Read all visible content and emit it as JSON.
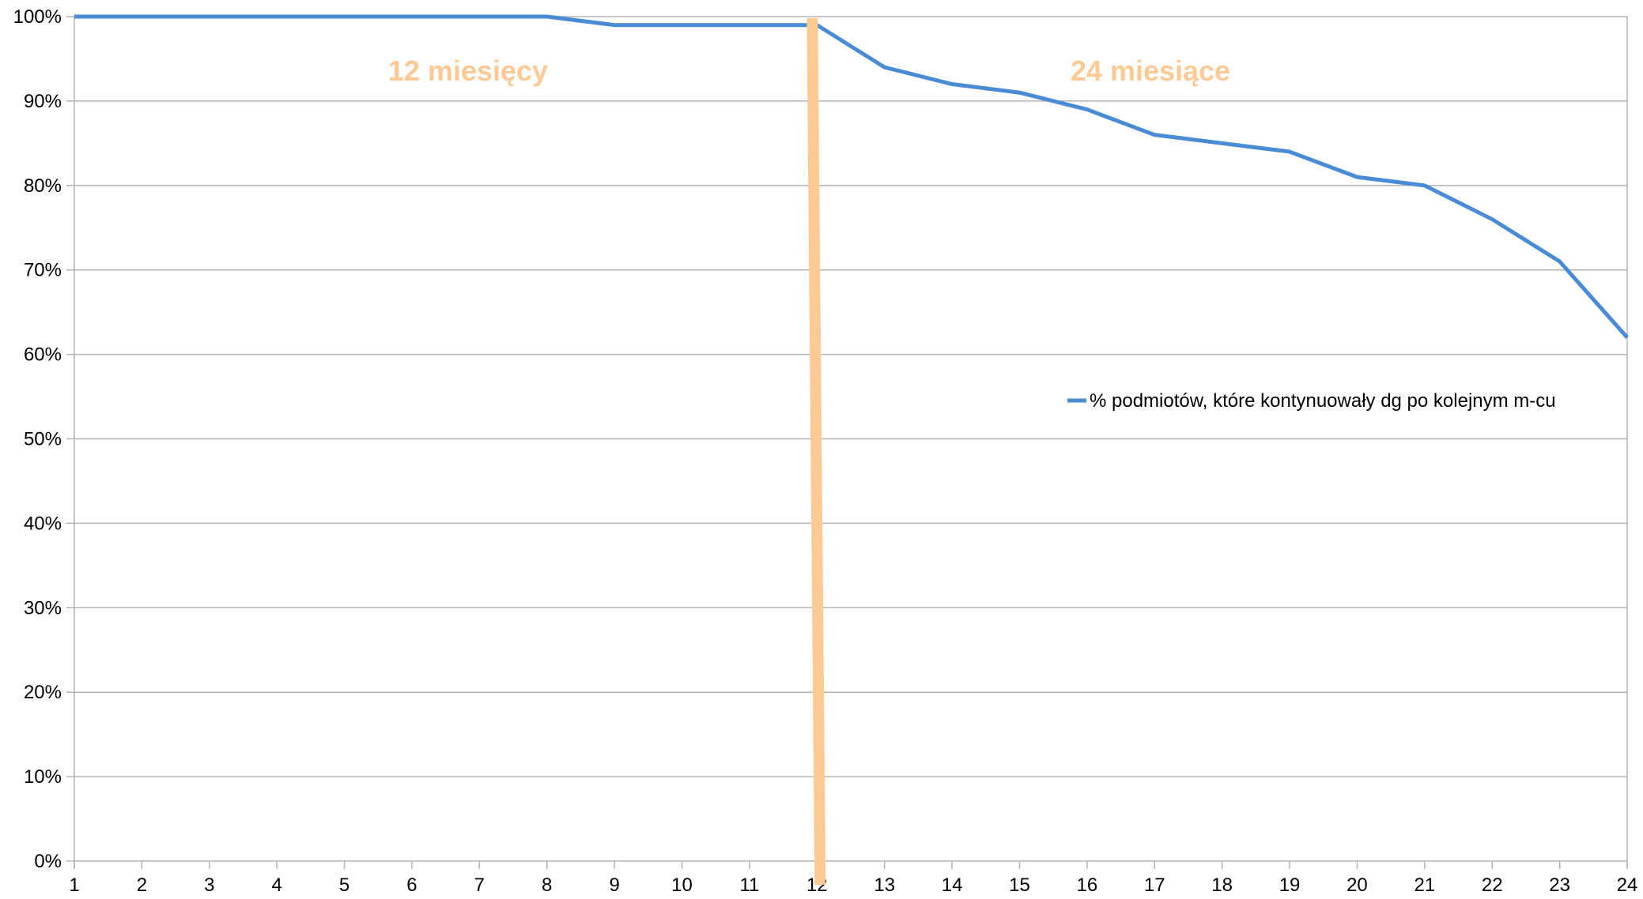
{
  "chart_data": {
    "type": "line",
    "title": "",
    "xlabel": "",
    "ylabel": "",
    "x": [
      1,
      2,
      3,
      4,
      5,
      6,
      7,
      8,
      9,
      10,
      11,
      12,
      13,
      14,
      15,
      16,
      17,
      18,
      19,
      20,
      21,
      22,
      23,
      24
    ],
    "x_tick_labels": [
      "1",
      "2",
      "3",
      "4",
      "5",
      "6",
      "7",
      "8",
      "9",
      "10",
      "11",
      "12",
      "13",
      "14",
      "15",
      "16",
      "17",
      "18",
      "19",
      "20",
      "21",
      "22",
      "23",
      "24"
    ],
    "ylim": [
      0,
      100
    ],
    "y_tick_labels": [
      "0%",
      "10%",
      "20%",
      "30%",
      "40%",
      "50%",
      "60%",
      "70%",
      "80%",
      "90%",
      "100%"
    ],
    "grid": true,
    "legend_position": "right",
    "series": [
      {
        "name": "% podmiotów, które kontynuowały dg po kolejnym m-cu",
        "color": "#4a8bd6",
        "values": [
          100,
          100,
          100,
          100,
          100,
          100,
          100,
          100,
          99,
          99,
          99,
          99,
          94,
          92,
          91,
          89,
          86,
          85,
          84,
          81,
          80,
          76,
          71,
          62
        ]
      }
    ],
    "annotations": [
      {
        "text": "12 miesięcy",
        "color": "#fdc995"
      },
      {
        "text": "24 miesiące",
        "color": "#fdc995"
      }
    ],
    "marker_line": {
      "x": 12,
      "color": "#fdc995"
    }
  }
}
